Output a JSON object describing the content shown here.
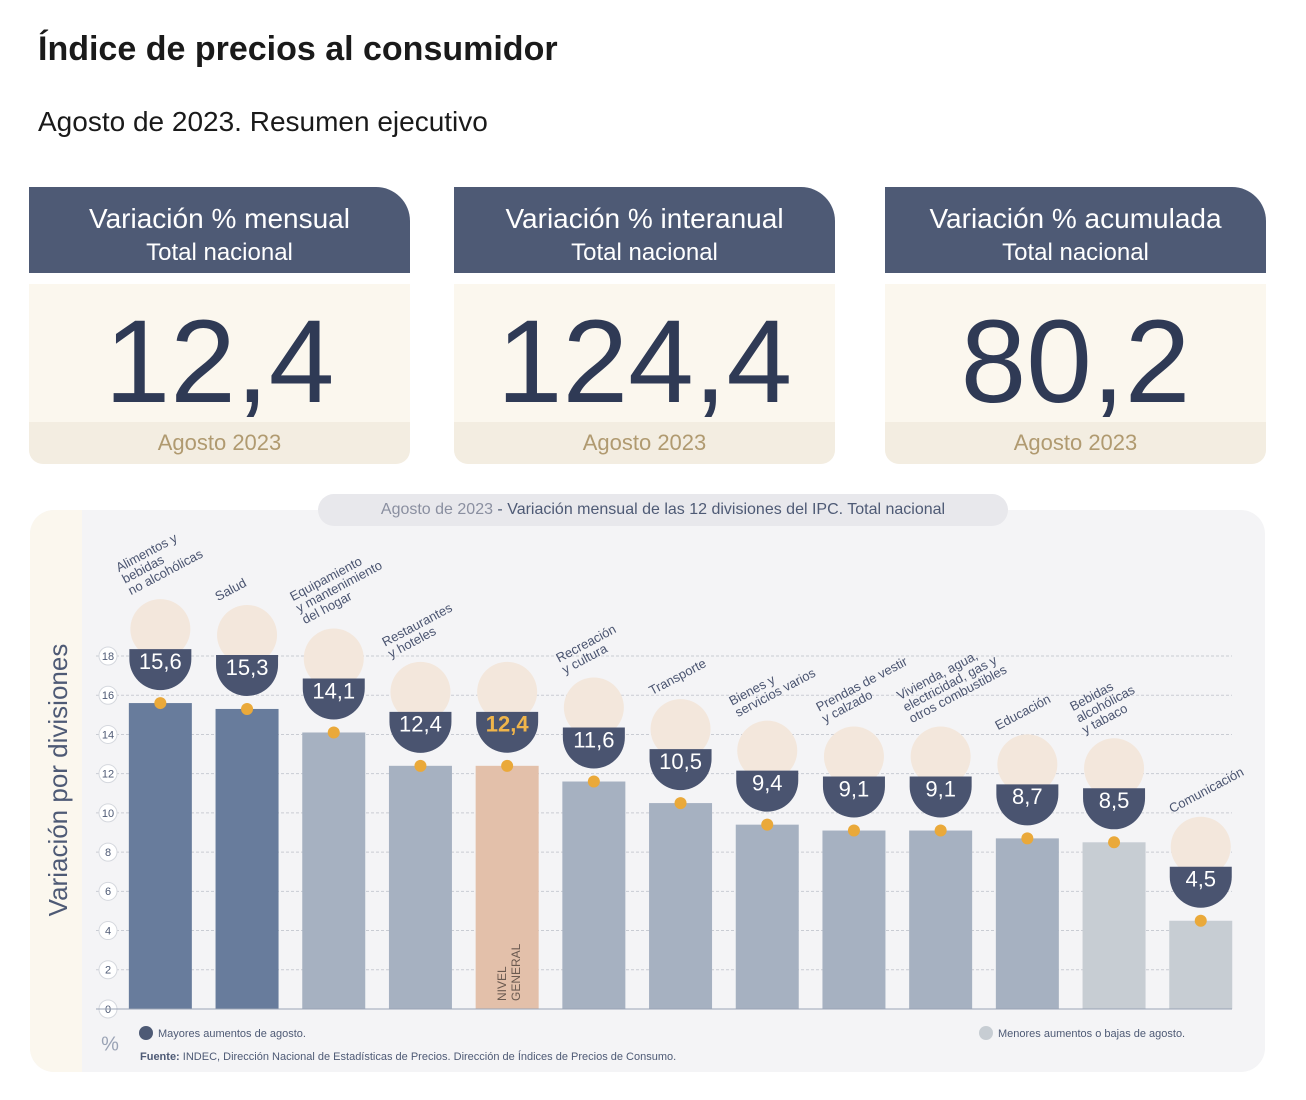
{
  "header": {
    "title": "Índice de precios al consumidor",
    "subtitle": "Agosto de 2023. Resumen ejecutivo"
  },
  "cards": [
    {
      "title": "Variación % mensual",
      "subtitle": "Total nacional",
      "value": "12,4",
      "period": "Agosto 2023"
    },
    {
      "title": "Variación % interanual",
      "subtitle": "Total nacional",
      "value": "124,4",
      "period": "Agosto 2023"
    },
    {
      "title": "Variación % acumulada",
      "subtitle": "Total nacional",
      "value": "80,2",
      "period": "Agosto 2023"
    }
  ],
  "chart_data": {
    "type": "bar",
    "title_date": "Agosto de 2023",
    "title": " - Variación mensual de las 12 divisiones del IPC. Total nacional",
    "ylabel": "Variación por divisiones",
    "unit": "%",
    "categories": [
      "Alimentos y\nbebidas\nno alcohólicas",
      "Salud",
      "Equipamiento\ny mantenimiento\ndel hogar",
      "Restaurantes\ny hoteles",
      "NIVEL\nGENERAL",
      "Recreación\ny cultura",
      "Transporte",
      "Bienes y\nservicios varios",
      "Prendas de vestir\ny calzado",
      "Vivienda, agua,\nelectricidad, gas y\notros combustibles",
      "Educación",
      "Bebidas\nalcohólicas\ny tabaco",
      "Comunicación"
    ],
    "values": [
      15.6,
      15.3,
      14.1,
      12.4,
      12.4,
      11.6,
      10.5,
      9.4,
      9.1,
      9.1,
      8.7,
      8.5,
      4.5
    ],
    "value_labels": [
      "15,6",
      "15,3",
      "14,1",
      "12,4",
      "12,4",
      "11,6",
      "10,5",
      "9,4",
      "9,1",
      "9,1",
      "8,7",
      "8,5",
      "4,5"
    ],
    "colors": [
      "#687c9c",
      "#687c9c",
      "#a6b1c1",
      "#a6b1c1",
      "#e3c0aa",
      "#a6b1c1",
      "#a6b1c1",
      "#a6b1c1",
      "#a6b1c1",
      "#a6b1c1",
      "#a6b1c1",
      "#c7cdd3",
      "#c7cdd3"
    ],
    "ylim": [
      0,
      18
    ],
    "yticks": [
      0,
      2,
      4,
      6,
      8,
      10,
      12,
      14,
      16,
      18
    ],
    "grid": true,
    "legend": [
      {
        "label": "Mayores aumentos de agosto.",
        "color": "#4e5a75"
      },
      {
        "label": "Menores aumentos o bajas de agosto.",
        "color": "#c7cdd3"
      }
    ],
    "source_label": "Fuente:",
    "source": " INDEC, Dirección Nacional de Estadísticas de Precios. Dirección de Índices de Precios de Consumo."
  }
}
